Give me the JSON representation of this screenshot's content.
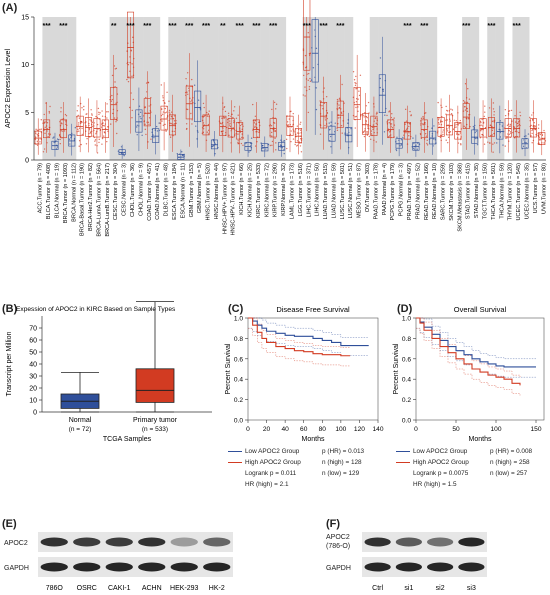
{
  "panels": {
    "A": {
      "label": "(A)",
      "ylabel": "APOC2 Expression Level",
      "yticks": [
        "0",
        "5",
        "10",
        "15"
      ],
      "groups": [
        {
          "label": "ACC.Tumor (n = 79)",
          "type": "tumor",
          "sig": "",
          "shade": false
        },
        {
          "label": "BLCA.Tumor (n = 408)",
          "type": "tumor",
          "sig": "***",
          "shade": true
        },
        {
          "label": "BLCA.Normal (n = 19)",
          "type": "normal",
          "sig": "",
          "shade": true
        },
        {
          "label": "BRCA.Tumor (n = 1093)",
          "type": "tumor",
          "sig": "***",
          "shade": true
        },
        {
          "label": "BRCA.Normal (n = 112)",
          "type": "normal",
          "sig": "",
          "shade": true
        },
        {
          "label": "BRCA-Basal.Tumor (n = 190)",
          "type": "tumor",
          "sig": "",
          "shade": false
        },
        {
          "label": "BRCA-Her2.Tumor (n = 82)",
          "type": "tumor",
          "sig": "",
          "shade": false
        },
        {
          "label": "BRCA-LumA.Tumor (n = 564)",
          "type": "tumor",
          "sig": "",
          "shade": false
        },
        {
          "label": "BRCA-LumB.Tumor (n = 217)",
          "type": "tumor",
          "sig": "",
          "shade": false
        },
        {
          "label": "CESC.Tumor (n = 304)",
          "type": "tumor",
          "sig": "**",
          "shade": true
        },
        {
          "label": "CESC.Normal (n = 3)",
          "type": "normal",
          "sig": "",
          "shade": true
        },
        {
          "label": "CHOL.Tumor (n = 36)",
          "type": "tumor",
          "sig": "***",
          "shade": true
        },
        {
          "label": "CHOL.Normal (n = 9)",
          "type": "normal",
          "sig": "",
          "shade": true
        },
        {
          "label": "COAD.Tumor (n = 457)",
          "type": "tumor",
          "sig": "***",
          "shade": true
        },
        {
          "label": "COAD.Normal (n = 41)",
          "type": "normal",
          "sig": "",
          "shade": true
        },
        {
          "label": "DLBC.Tumor (n = 48)",
          "type": "tumor",
          "sig": "",
          "shade": false
        },
        {
          "label": "ESCA.Tumor (n = 184)",
          "type": "tumor",
          "sig": "***",
          "shade": true
        },
        {
          "label": "ESCA.Normal (n = 11)",
          "type": "normal",
          "sig": "",
          "shade": true
        },
        {
          "label": "GBM.Tumor (n = 153)",
          "type": "tumor",
          "sig": "***",
          "shade": true
        },
        {
          "label": "GBM.Normal (n = 5)",
          "type": "normal",
          "sig": "",
          "shade": true
        },
        {
          "label": "HNSC.Tumor (n = 520)",
          "type": "tumor",
          "sig": "***",
          "shade": true
        },
        {
          "label": "HNSC.Normal (n = 44)",
          "type": "normal",
          "sig": "",
          "shade": true
        },
        {
          "label": "HNSC-HPV+.Tumor (n = 97)",
          "type": "tumor",
          "sig": "**",
          "shade": true
        },
        {
          "label": "HNSC-HPV-.Tumor (n = 421)",
          "type": "tumor",
          "sig": "",
          "shade": true
        },
        {
          "label": "KICH.Tumor (n = 66)",
          "type": "tumor",
          "sig": "***",
          "shade": true
        },
        {
          "label": "KICH.Normal (n = 25)",
          "type": "normal",
          "sig": "",
          "shade": true
        },
        {
          "label": "KIRC.Tumor (n = 533)",
          "type": "tumor",
          "sig": "***",
          "shade": true
        },
        {
          "label": "KIRC.Normal (n = 72)",
          "type": "normal",
          "sig": "",
          "shade": true
        },
        {
          "label": "KIRP.Tumor (n = 290)",
          "type": "tumor",
          "sig": "***",
          "shade": true
        },
        {
          "label": "KIRP.Normal (n = 32)",
          "type": "normal",
          "sig": "",
          "shade": true
        },
        {
          "label": "LAML.Tumor (n = 173)",
          "type": "tumor",
          "sig": "",
          "shade": false
        },
        {
          "label": "LGG.Tumor (n = 516)",
          "type": "tumor",
          "sig": "",
          "shade": false
        },
        {
          "label": "LIHC.Tumor (n = 371)",
          "type": "tumor",
          "sig": "***",
          "shade": true
        },
        {
          "label": "LIHC.Normal (n = 50)",
          "type": "normal",
          "sig": "",
          "shade": true
        },
        {
          "label": "LUAD.Tumor (n = 515)",
          "type": "tumor",
          "sig": "***",
          "shade": true
        },
        {
          "label": "LUAD.Normal (n = 59)",
          "type": "normal",
          "sig": "",
          "shade": true
        },
        {
          "label": "LUSC.Tumor (n = 501)",
          "type": "tumor",
          "sig": "***",
          "shade": true
        },
        {
          "label": "LUSC.Normal (n = 51)",
          "type": "normal",
          "sig": "",
          "shade": true
        },
        {
          "label": "MESO.Tumor (n = 87)",
          "type": "tumor",
          "sig": "",
          "shade": false
        },
        {
          "label": "OV.Tumor (n = 303)",
          "type": "tumor",
          "sig": "",
          "shade": false
        },
        {
          "label": "PAAD.Tumor (n = 178)",
          "type": "tumor",
          "sig": "",
          "shade": true
        },
        {
          "label": "PAAD.Normal (n = 4)",
          "type": "normal",
          "sig": "",
          "shade": true
        },
        {
          "label": "PCPG.Tumor (n = 179)",
          "type": "tumor",
          "sig": "",
          "shade": true
        },
        {
          "label": "PCPG.Normal (n = 3)",
          "type": "normal",
          "sig": "",
          "shade": true
        },
        {
          "label": "PRAD.Tumor (n = 497)",
          "type": "tumor",
          "sig": "***",
          "shade": true
        },
        {
          "label": "PRAD.Normal (n = 52)",
          "type": "normal",
          "sig": "",
          "shade": true
        },
        {
          "label": "READ.Tumor (n = 166)",
          "type": "tumor",
          "sig": "***",
          "shade": true
        },
        {
          "label": "READ.Normal (n = 10)",
          "type": "normal",
          "sig": "",
          "shade": true
        },
        {
          "label": "SARC.Tumor (n = 259)",
          "type": "tumor",
          "sig": "",
          "shade": false
        },
        {
          "label": "SKCM.Tumor (n = 103)",
          "type": "tumor",
          "sig": "",
          "shade": false
        },
        {
          "label": "SKCM.Metastasis (n = 368)",
          "type": "tumor",
          "sig": "",
          "shade": false
        },
        {
          "label": "STAD.Tumor (n = 415)",
          "type": "tumor",
          "sig": "***",
          "shade": true
        },
        {
          "label": "STAD.Normal (n = 35)",
          "type": "normal",
          "sig": "",
          "shade": true
        },
        {
          "label": "TGCT.Tumor (n = 150)",
          "type": "tumor",
          "sig": "",
          "shade": false
        },
        {
          "label": "THCA.Tumor (n = 501)",
          "type": "tumor",
          "sig": "***",
          "shade": true
        },
        {
          "label": "THCA.Normal (n = 59)",
          "type": "normal",
          "sig": "",
          "shade": true
        },
        {
          "label": "THYM.Tumor (n = 120)",
          "type": "tumor",
          "sig": "",
          "shade": false
        },
        {
          "label": "UCEC.Tumor (n = 545)",
          "type": "tumor",
          "sig": "***",
          "shade": true
        },
        {
          "label": "UCEC.Normal (n = 35)",
          "type": "normal",
          "sig": "",
          "shade": true
        },
        {
          "label": "UCS.Tumor (n = 57)",
          "type": "tumor",
          "sig": "",
          "shade": false
        },
        {
          "label": "UVM.Tumor (n = 80)",
          "type": "tumor",
          "sig": "",
          "shade": false
        }
      ],
      "medians": [
        2.3,
        3.2,
        1.5,
        3.2,
        2.0,
        3.5,
        3.4,
        3.3,
        3.2,
        5.8,
        0.8,
        11.8,
        4.0,
        4.9,
        2.5,
        4.3,
        3.6,
        0.3,
        5.9,
        5.5,
        3.6,
        1.6,
        3.5,
        3.3,
        3.0,
        1.4,
        3.2,
        1.3,
        3.3,
        1.4,
        3.5,
        2.5,
        12.9,
        11.2,
        4.6,
        2.7,
        4.7,
        2.6,
        5.8,
        3.7,
        3.5,
        6.8,
        3.2,
        1.7,
        3.0,
        1.4,
        3.2,
        2.3,
        3.4,
        3.6,
        3.0,
        4.5,
        2.4,
        3.3,
        3.4,
        3.0,
        3.3,
        3.3,
        1.7,
        3.3,
        2.2
      ]
    },
    "B": {
      "label": "(B)",
      "title": "Expession of APOC2 in KIRC Based on Sample Types",
      "ylabel": "Transcript per Million",
      "xlabel": "TCGA Samples",
      "yticks": [
        "0",
        "10",
        "20",
        "30",
        "40",
        "50",
        "60",
        "70"
      ],
      "groups": [
        {
          "name": "Normal",
          "n": "(n = 72)",
          "min": 0,
          "q1": 3,
          "median": 9,
          "q3": 15,
          "max": 33,
          "color": "#2f4f9a"
        },
        {
          "name": "Primary tumor",
          "n": "(n = 533)",
          "min": 0,
          "q1": 8,
          "median": 18,
          "q3": 36,
          "max": 92,
          "color": "#d23b22"
        }
      ],
      "ylim": [
        0,
        80
      ]
    },
    "C": {
      "label": "(C)",
      "title": "Disease Free Survival",
      "ylabel": "Percent Survival",
      "xlabel": "Months",
      "xticks": [
        "0",
        "20",
        "40",
        "60",
        "80",
        "100",
        "120",
        "140"
      ],
      "yticks": [
        "0.0",
        "0.2",
        "0.4",
        "0.6",
        "0.8",
        "1.0"
      ],
      "low": [
        [
          0,
          1
        ],
        [
          5,
          0.97
        ],
        [
          10,
          0.93
        ],
        [
          15,
          0.9
        ],
        [
          20,
          0.87
        ],
        [
          30,
          0.85
        ],
        [
          40,
          0.83
        ],
        [
          50,
          0.82
        ],
        [
          60,
          0.82
        ],
        [
          70,
          0.8
        ],
        [
          80,
          0.78
        ],
        [
          90,
          0.76
        ],
        [
          100,
          0.73
        ],
        [
          130,
          0.73
        ]
      ],
      "high": [
        [
          0,
          1
        ],
        [
          5,
          0.93
        ],
        [
          10,
          0.86
        ],
        [
          15,
          0.8
        ],
        [
          20,
          0.76
        ],
        [
          30,
          0.72
        ],
        [
          40,
          0.7
        ],
        [
          50,
          0.68
        ],
        [
          60,
          0.67
        ],
        [
          70,
          0.65
        ],
        [
          80,
          0.64
        ],
        [
          100,
          0.63
        ],
        [
          110,
          0.63
        ]
      ],
      "legend": {
        "low": "Low APOC2 Group",
        "high": "High APOC2 Group",
        "logrank": "Logrank p = 0.011",
        "hr": "HR (high) = 2.1",
        "p_hr": "p (HR) = 0.013",
        "n_high": "n (high) = 128",
        "n_low": "n (low) = 129"
      }
    },
    "D": {
      "label": "(D)",
      "title": "Overall Survival",
      "ylabel": "Percent Survival",
      "xlabel": "Months",
      "xticks": [
        "0",
        "50",
        "100",
        "150"
      ],
      "yticks": [
        "0.0",
        "0.2",
        "0.4",
        "0.6",
        "0.8",
        "1.0"
      ],
      "low": [
        [
          0,
          1
        ],
        [
          5,
          0.96
        ],
        [
          10,
          0.91
        ],
        [
          20,
          0.84
        ],
        [
          30,
          0.78
        ],
        [
          40,
          0.72
        ],
        [
          50,
          0.68
        ],
        [
          60,
          0.64
        ],
        [
          70,
          0.6
        ],
        [
          80,
          0.57
        ],
        [
          90,
          0.55
        ],
        [
          100,
          0.53
        ],
        [
          110,
          0.52
        ],
        [
          150,
          0.52
        ]
      ],
      "high": [
        [
          0,
          1
        ],
        [
          5,
          0.95
        ],
        [
          10,
          0.88
        ],
        [
          20,
          0.8
        ],
        [
          30,
          0.72
        ],
        [
          40,
          0.66
        ],
        [
          50,
          0.6
        ],
        [
          60,
          0.55
        ],
        [
          70,
          0.5
        ],
        [
          80,
          0.47
        ],
        [
          90,
          0.44
        ],
        [
          100,
          0.42
        ],
        [
          110,
          0.4
        ],
        [
          120,
          0.36
        ],
        [
          130,
          0.34
        ]
      ],
      "legend": {
        "low": "Low APOC2 Group",
        "high": "High APOC2 Group",
        "logrank": "Logrank p = 0.0075",
        "hr": "HR (high) = 1.5",
        "p_hr": "p (HR) = 0.008",
        "n_high": "n (high) = 258",
        "n_low": "n (low) = 257"
      }
    },
    "E": {
      "label": "(E)",
      "rows": [
        "APOC2",
        "GAPDH"
      ],
      "lanes": [
        "786O",
        "OSRC",
        "CAKI-1",
        "ACHN",
        "HEK-293",
        "HK-2"
      ],
      "apoc2_intensity": [
        0.85,
        0.8,
        0.8,
        0.85,
        0.35,
        0.6
      ],
      "gapdh_intensity": [
        0.9,
        0.9,
        0.9,
        0.9,
        0.9,
        0.9
      ]
    },
    "F": {
      "label": "(F)",
      "rows": [
        "APOC2\n(786-O)",
        "GAPDH"
      ],
      "row1a": "APOC2",
      "row1b": "(786-O)",
      "lanes": [
        "Ctrl",
        "si1",
        "si2",
        "si3"
      ],
      "apoc2_intensity": [
        0.85,
        0.65,
        0.55,
        0.9
      ],
      "gapdh_intensity": [
        0.9,
        0.9,
        0.9,
        0.9
      ]
    }
  },
  "colors": {
    "tumor": "#d23b22",
    "normal": "#2f4f9a",
    "shade": "#d9d9d9"
  }
}
